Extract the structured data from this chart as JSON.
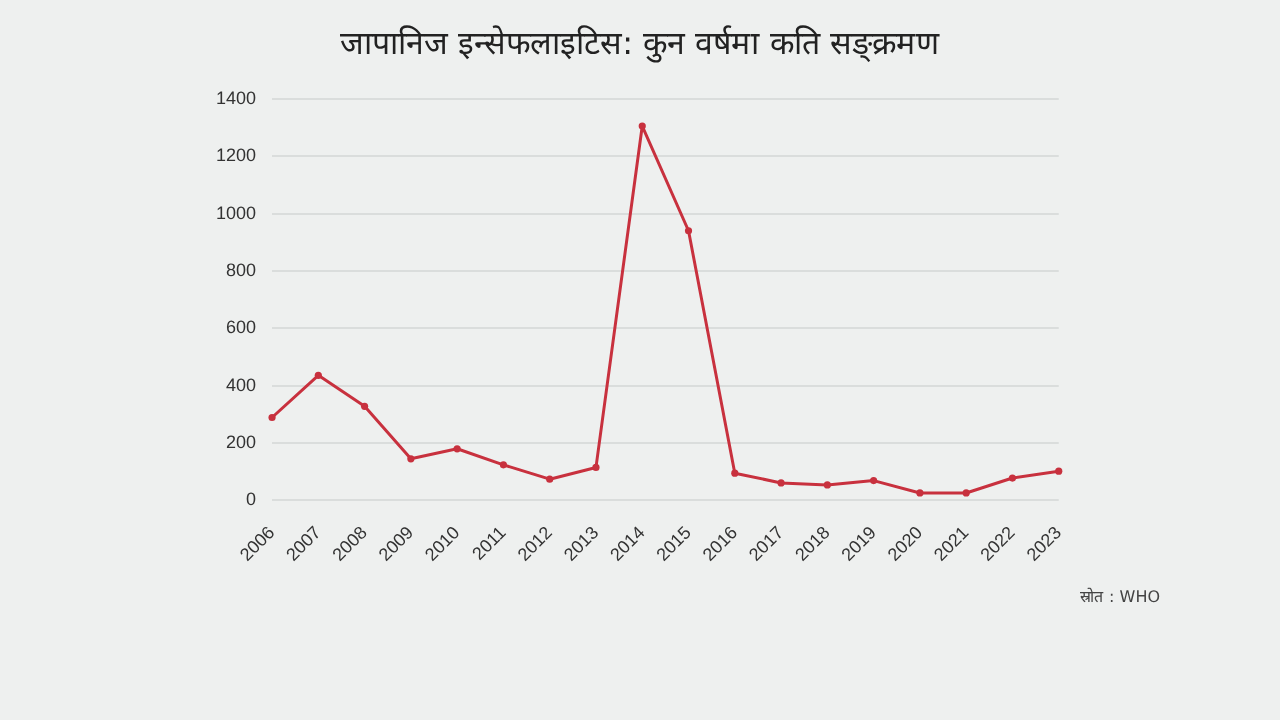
{
  "chart_data": {
    "type": "line",
    "title": "जापानिज इन्सेफलाइटिस: कुन वर्षमा कति सङ्क्रमण",
    "categories": [
      "2006",
      "2007",
      "2008",
      "2009",
      "2010",
      "2011",
      "2012",
      "2013",
      "2014",
      "2015",
      "2016",
      "2017",
      "2018",
      "2019",
      "2020",
      "2021",
      "2022",
      "2023"
    ],
    "series": [
      {
        "color": "#c8313e",
        "values": [
          289,
          436,
          328,
          145,
          180,
          124,
          74,
          115,
          1305,
          940,
          95,
          61,
          54,
          69,
          26,
          26,
          78,
          102
        ]
      }
    ],
    "ylim": [
      0,
      1400
    ],
    "yticks": [
      0,
      200,
      400,
      600,
      800,
      1000,
      1200,
      1400
    ],
    "grid": "y",
    "legend": false,
    "marker": "circle",
    "line_style": "solid",
    "annotations": [
      "स्रोत : WHO"
    ]
  }
}
